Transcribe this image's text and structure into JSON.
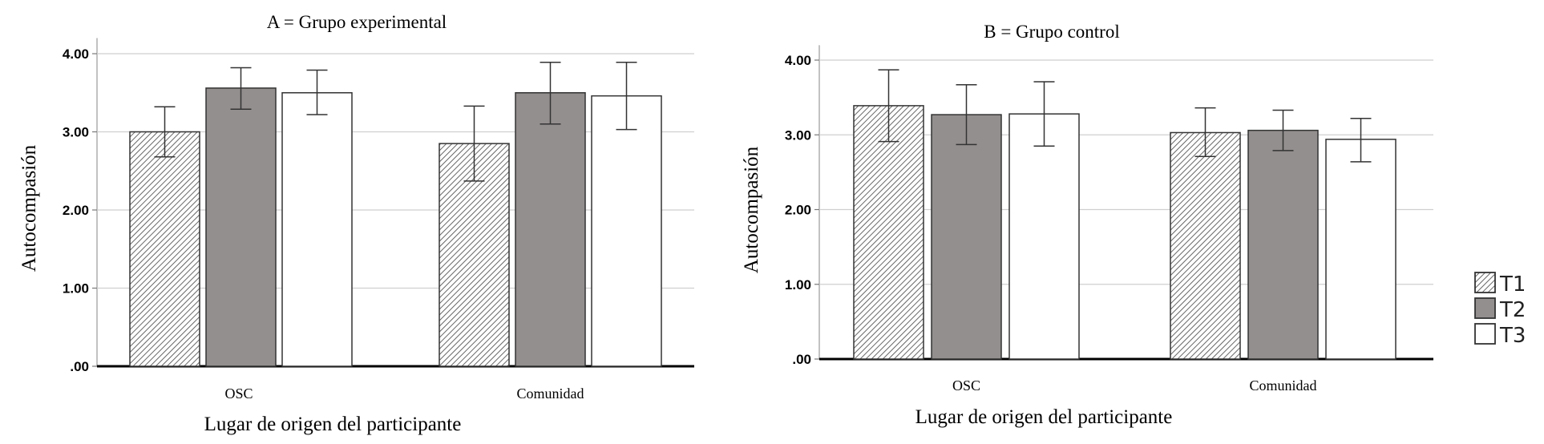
{
  "chart_data": [
    {
      "type": "bar",
      "title": "A = Grupo experimental",
      "xlabel": "Lugar de origen del participante",
      "ylabel": "Autocompasión",
      "categories": [
        "OSC",
        "Comunidad"
      ],
      "ylim": [
        0,
        4.2
      ],
      "yticks": [
        ".00",
        "1.00",
        "2.00",
        "3.00",
        "4.00"
      ],
      "grid": true,
      "series": [
        {
          "name": "T1",
          "values": [
            3.0,
            2.85
          ],
          "err_low": [
            2.68,
            2.37
          ],
          "err_high": [
            3.32,
            3.33
          ]
        },
        {
          "name": "T2",
          "values": [
            3.56,
            3.5
          ],
          "err_low": [
            3.29,
            3.1
          ],
          "err_high": [
            3.82,
            3.89
          ]
        },
        {
          "name": "T3",
          "values": [
            3.5,
            3.46
          ],
          "err_low": [
            3.22,
            3.03
          ],
          "err_high": [
            3.79,
            3.89
          ]
        }
      ]
    },
    {
      "type": "bar",
      "title": "B = Grupo control",
      "xlabel": "Lugar de origen del participante",
      "ylabel": "Autocompasión",
      "categories": [
        "OSC",
        "Comunidad"
      ],
      "ylim": [
        0,
        4.2
      ],
      "yticks": [
        ".00",
        "1.00",
        "2.00",
        "3.00",
        "4.00"
      ],
      "grid": true,
      "series": [
        {
          "name": "T1",
          "values": [
            3.39,
            3.03
          ],
          "err_low": [
            2.91,
            2.71
          ],
          "err_high": [
            3.87,
            3.36
          ]
        },
        {
          "name": "T2",
          "values": [
            3.27,
            3.06
          ],
          "err_low": [
            2.87,
            2.79
          ],
          "err_high": [
            3.67,
            3.33
          ]
        },
        {
          "name": "T3",
          "values": [
            3.28,
            2.94
          ],
          "err_low": [
            2.85,
            2.64
          ],
          "err_high": [
            3.71,
            3.22
          ]
        }
      ]
    }
  ],
  "legend": {
    "position": "right",
    "items": [
      {
        "label": "T1",
        "pattern": "hatch"
      },
      {
        "label": "T2",
        "pattern": "solid"
      },
      {
        "label": "T3",
        "pattern": "white"
      }
    ]
  },
  "colors": {
    "T1_hatch": "#555555",
    "T2_fill": "#938f8e",
    "T3_fill": "#ffffff",
    "grid": "#cfcfcf"
  }
}
